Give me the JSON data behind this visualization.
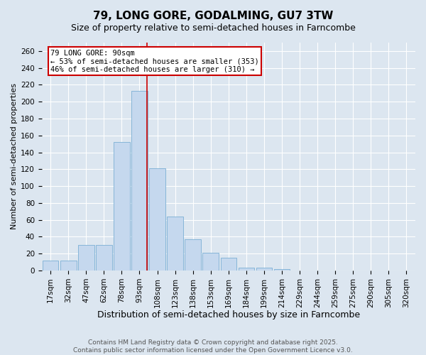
{
  "title": "79, LONG GORE, GODALMING, GU7 3TW",
  "subtitle": "Size of property relative to semi-detached houses in Farncombe",
  "xlabel": "Distribution of semi-detached houses by size in Farncombe",
  "ylabel": "Number of semi-detached properties",
  "bar_labels": [
    "17sqm",
    "32sqm",
    "47sqm",
    "62sqm",
    "78sqm",
    "93sqm",
    "108sqm",
    "123sqm",
    "138sqm",
    "153sqm",
    "169sqm",
    "184sqm",
    "199sqm",
    "214sqm",
    "229sqm",
    "244sqm",
    "259sqm",
    "275sqm",
    "290sqm",
    "305sqm",
    "320sqm"
  ],
  "bar_values": [
    12,
    12,
    30,
    30,
    152,
    213,
    121,
    64,
    37,
    21,
    15,
    3,
    3,
    2,
    0,
    0,
    0,
    0,
    0,
    0,
    0
  ],
  "bar_color": "#c5d8ee",
  "bar_edge_color": "#7aafd4",
  "vline_x_index": 5.42,
  "vline_color": "#cc0000",
  "property_label": "79 LONG GORE: 90sqm",
  "smaller_pct": "53%",
  "smaller_count": 353,
  "larger_pct": "46%",
  "larger_count": 310,
  "annotation_box_edge_color": "#cc0000",
  "ylim": [
    0,
    270
  ],
  "yticks": [
    0,
    20,
    40,
    60,
    80,
    100,
    120,
    140,
    160,
    180,
    200,
    220,
    240,
    260
  ],
  "bg_color": "#dce6f0",
  "plot_bg_color": "#dce6f0",
  "footer_line1": "Contains HM Land Registry data © Crown copyright and database right 2025.",
  "footer_line2": "Contains public sector information licensed under the Open Government Licence v3.0.",
  "title_fontsize": 11,
  "subtitle_fontsize": 9,
  "xlabel_fontsize": 9,
  "ylabel_fontsize": 8,
  "tick_fontsize": 7.5,
  "footer_fontsize": 6.5
}
